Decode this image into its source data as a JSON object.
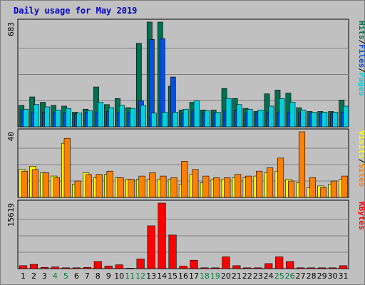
{
  "chart_data": {
    "type": "bar",
    "title": "Daily usage for May 2019",
    "categories": [
      "1",
      "2",
      "3",
      "4",
      "5",
      "6",
      "7",
      "8",
      "9",
      "10",
      "11",
      "12",
      "13",
      "14",
      "15",
      "16",
      "17",
      "18",
      "19",
      "20",
      "21",
      "22",
      "23",
      "24",
      "25",
      "26",
      "27",
      "28",
      "29",
      "30",
      "31"
    ],
    "weekend_days": [
      "4",
      "5",
      "11",
      "12",
      "18",
      "19",
      "25",
      "26"
    ],
    "colors": {
      "hits": "#007050",
      "files": "#0050e0",
      "pages": "#00d0e0",
      "visits": "#ffff00",
      "sites": "#ff8000",
      "kbytes": "#ff0000",
      "weekday_label": "#000000",
      "weekend_label": "#008040",
      "title": "#0000cc",
      "plot_background": "#c0c0c0",
      "grid": "#808080"
    },
    "panels": [
      {
        "name": "hits-files-pages",
        "ymax_label": "683",
        "ylim": [
          0,
          683
        ],
        "legend": [
          "Pages",
          "/",
          "Files",
          "/",
          "Hits"
        ],
        "series": [
          {
            "name": "Hits",
            "values": [
              140,
              195,
              160,
              140,
              135,
              95,
              115,
              260,
              145,
              185,
              125,
              545,
              683,
              683,
              265,
              110,
              160,
              110,
              110,
              250,
              185,
              120,
              100,
              215,
              240,
              220,
              125,
              100,
              100,
              100,
              175
            ]
          },
          {
            "name": "Files",
            "values": [
              110,
              95,
              95,
              95,
              90,
              85,
              95,
              95,
              100,
              95,
              95,
              170,
              570,
              575,
              325,
              85,
              105,
              90,
              90,
              105,
              105,
              90,
              90,
              95,
              95,
              95,
              90,
              90,
              90,
              90,
              95
            ]
          },
          {
            "name": "Pages",
            "values": [
              115,
              145,
              130,
              110,
              120,
              90,
              105,
              160,
              125,
              140,
              120,
              140,
              90,
              95,
              95,
              115,
              170,
              105,
              95,
              185,
              145,
              115,
              110,
              135,
              185,
              160,
              110,
              95,
              95,
              95,
              135
            ]
          }
        ]
      },
      {
        "name": "visits-sites",
        "ymax_label": "40",
        "ylim": [
          0,
          40
        ],
        "legend": [
          "Sites",
          "/",
          "Visits"
        ],
        "series": [
          {
            "name": "Visits",
            "values": [
              17,
              19,
              15,
              13,
              33,
              8,
              15,
              12,
              14,
              12,
              11,
              11,
              11,
              11,
              11,
              8,
              14,
              9,
              11,
              11,
              12,
              12,
              13,
              15,
              16,
              11,
              9,
              6,
              7,
              8,
              11
            ]
          },
          {
            "name": "Sites",
            "values": [
              16,
              17,
              15,
              12,
              36,
              10,
              14,
              14,
              16,
              12,
              11,
              13,
              15,
              13,
              12,
              22,
              17,
              13,
              12,
              12,
              14,
              13,
              16,
              18,
              24,
              10,
              40,
              12,
              6,
              10,
              13
            ]
          }
        ]
      },
      {
        "name": "kbytes",
        "ymax_label": "15619",
        "ylim": [
          0,
          15619
        ],
        "legend": [
          "KBytes"
        ],
        "series": [
          {
            "name": "KBytes",
            "values": [
              700,
              1000,
              300,
              400,
              200,
              200,
              300,
              1700,
              600,
              900,
              100,
              2300,
              10200,
              15619,
              8000,
              600,
              2000,
              200,
              200,
              2800,
              700,
              200,
              200,
              1200,
              2800,
              1700,
              200,
              200,
              200,
              200,
              700
            ]
          }
        ]
      }
    ]
  }
}
